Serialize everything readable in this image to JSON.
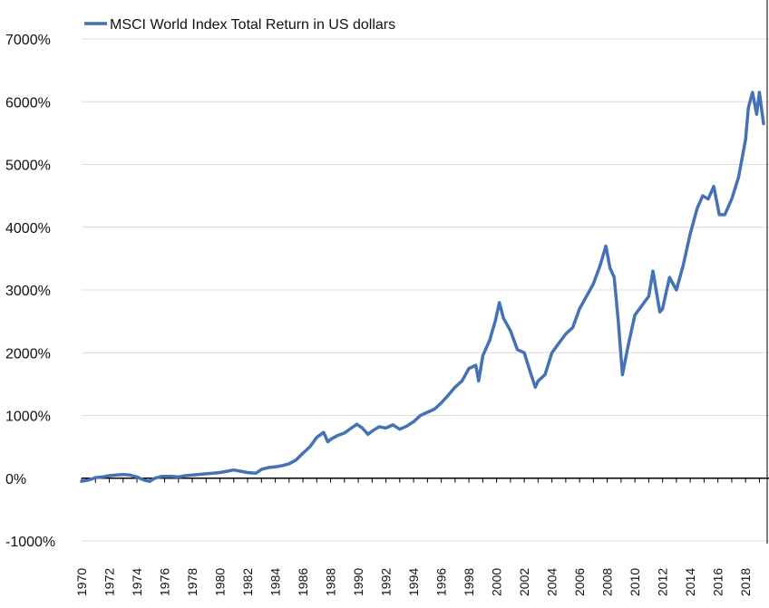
{
  "chart_data": {
    "type": "line",
    "title": "",
    "xlabel": "",
    "ylabel": "",
    "legend": {
      "position": "top-left",
      "entries": [
        "MSCI World Index Total Return in US dollars"
      ]
    },
    "y_ticks": [
      -1000,
      0,
      1000,
      2000,
      3000,
      4000,
      5000,
      6000,
      7000
    ],
    "y_tick_labels": [
      "-1000%",
      "0%",
      "1000%",
      "2000%",
      "3000%",
      "4000%",
      "5000%",
      "6000%",
      "7000%"
    ],
    "ylim": [
      -1000,
      7000
    ],
    "x_tick_labels": [
      "1970",
      "1972",
      "1974",
      "1976",
      "1978",
      "1980",
      "1982",
      "1984",
      "1986",
      "1988",
      "1990",
      "1992",
      "1994",
      "1996",
      "1998",
      "2000",
      "2002",
      "2004",
      "2006",
      "2008",
      "2010",
      "2012",
      "2014",
      "2016",
      "2018"
    ],
    "xlim": [
      1970,
      2019.3
    ],
    "grid": "horizontal",
    "series": [
      {
        "name": "MSCI World Index Total Return in US dollars",
        "color": "#4472b4",
        "x": [
          1970.0,
          1970.5,
          1971.0,
          1971.5,
          1972.0,
          1972.5,
          1973.0,
          1973.5,
          1974.0,
          1974.5,
          1974.9,
          1975.3,
          1975.8,
          1976.5,
          1977.0,
          1977.5,
          1978.0,
          1978.5,
          1979.0,
          1979.5,
          1980.0,
          1980.5,
          1981.0,
          1981.5,
          1982.0,
          1982.6,
          1983.0,
          1983.5,
          1984.0,
          1984.5,
          1985.0,
          1985.5,
          1986.0,
          1986.5,
          1987.0,
          1987.5,
          1987.8,
          1988.0,
          1988.5,
          1989.0,
          1989.5,
          1989.9,
          1990.3,
          1990.7,
          1991.0,
          1991.5,
          1992.0,
          1992.5,
          1993.0,
          1993.5,
          1994.0,
          1994.5,
          1995.0,
          1995.5,
          1996.0,
          1996.5,
          1997.0,
          1997.5,
          1998.0,
          1998.5,
          1998.7,
          1999.0,
          1999.5,
          1999.9,
          2000.2,
          2000.5,
          2001.0,
          2001.5,
          2002.0,
          2002.5,
          2002.8,
          2003.0,
          2003.5,
          2004.0,
          2004.5,
          2005.0,
          2005.5,
          2006.0,
          2006.5,
          2007.0,
          2007.5,
          2007.9,
          2008.2,
          2008.5,
          2008.8,
          2009.1,
          2009.5,
          2010.0,
          2010.5,
          2011.0,
          2011.3,
          2011.8,
          2012.0,
          2012.5,
          2013.0,
          2013.5,
          2014.0,
          2014.5,
          2014.9,
          2015.3,
          2015.7,
          2016.1,
          2016.5,
          2017.0,
          2017.5,
          2018.0,
          2018.2,
          2018.5,
          2018.8,
          2019.0,
          2019.3
        ],
        "y": [
          -50,
          -30,
          10,
          20,
          40,
          50,
          60,
          50,
          20,
          -30,
          -50,
          0,
          30,
          30,
          20,
          40,
          50,
          60,
          70,
          80,
          90,
          110,
          130,
          110,
          90,
          80,
          140,
          170,
          180,
          200,
          230,
          290,
          400,
          500,
          650,
          730,
          580,
          620,
          680,
          720,
          800,
          860,
          800,
          700,
          750,
          820,
          800,
          850,
          780,
          830,
          900,
          1000,
          1050,
          1100,
          1200,
          1320,
          1450,
          1550,
          1750,
          1800,
          1550,
          1950,
          2200,
          2500,
          2800,
          2550,
          2350,
          2050,
          2000,
          1650,
          1450,
          1550,
          1650,
          2000,
          2150,
          2300,
          2400,
          2700,
          2900,
          3100,
          3400,
          3700,
          3350,
          3200,
          2500,
          1650,
          2100,
          2600,
          2750,
          2900,
          3300,
          2650,
          2700,
          3200,
          3000,
          3400,
          3900,
          4300,
          4500,
          4450,
          4650,
          4200,
          4200,
          4450,
          4800,
          5400,
          5900,
          6150,
          5800,
          6150,
          5650
        ]
      }
    ]
  }
}
